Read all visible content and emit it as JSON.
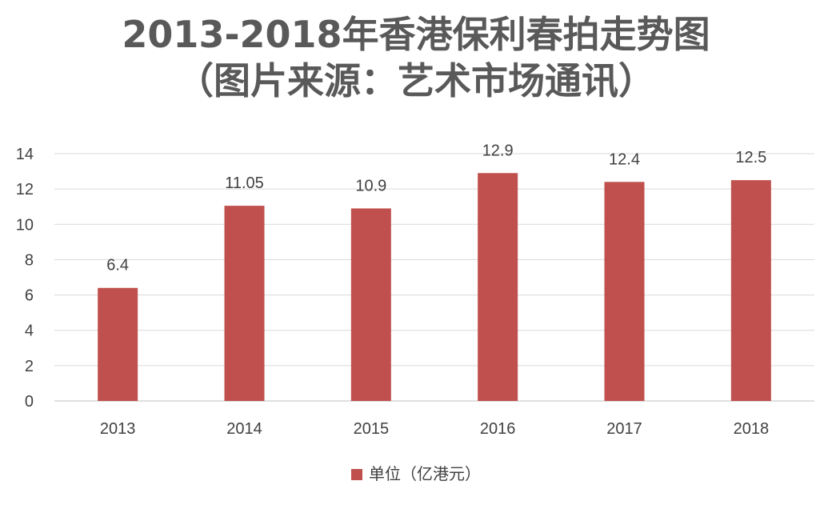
{
  "chart_data": {
    "type": "bar",
    "title_lines": [
      "2013-2018年香港保利春拍走势图",
      "（图片来源：艺术市场通讯）"
    ],
    "categories": [
      "2013",
      "2014",
      "2015",
      "2016",
      "2017",
      "2018"
    ],
    "series": [
      {
        "name": "单位（亿港元）",
        "values": [
          6.4,
          11.05,
          10.9,
          12.9,
          12.4,
          12.5
        ],
        "labels": [
          "6.4",
          "11.05",
          "10.9",
          "12.9",
          "12.4",
          "12.5"
        ],
        "color": "#c0504d"
      }
    ],
    "ylim": [
      0,
      14
    ],
    "yticks": [
      0,
      2,
      4,
      6,
      8,
      10,
      12,
      14
    ],
    "grid": true,
    "legend_position": "bottom"
  }
}
